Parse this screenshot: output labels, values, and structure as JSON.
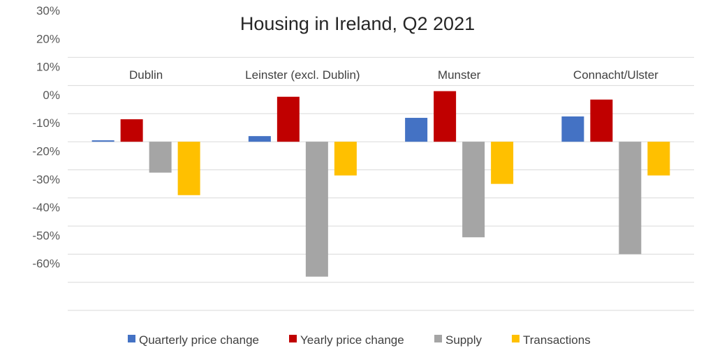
{
  "chart_data": {
    "type": "bar",
    "title": "Housing in Ireland, Q2 2021",
    "categories": [
      "Dublin",
      "Leinster (excl. Dublin)",
      "Munster",
      "Connacht/Ulster"
    ],
    "series": [
      {
        "name": "Quarterly price change",
        "color": "#4472C4",
        "values": [
          0.5,
          2.0,
          8.5,
          9.0
        ]
      },
      {
        "name": "Yearly price change",
        "color": "#C00000",
        "values": [
          8.0,
          16.0,
          18.0,
          15.0
        ]
      },
      {
        "name": "Supply",
        "color": "#A5A5A5",
        "values": [
          -11.0,
          -48.0,
          -34.0,
          -40.0
        ]
      },
      {
        "name": "Transactions",
        "color": "#FFC000",
        "values": [
          -19.0,
          -12.0,
          -15.0,
          -12.0
        ]
      }
    ],
    "y_tick_labels": [
      "30%",
      "20%",
      "10%",
      "0%",
      "-10%",
      "-20%",
      "-30%",
      "-40%",
      "-50%",
      "-60%"
    ],
    "ylim": [
      -60,
      40
    ],
    "grid": true,
    "legend": "bottom"
  }
}
